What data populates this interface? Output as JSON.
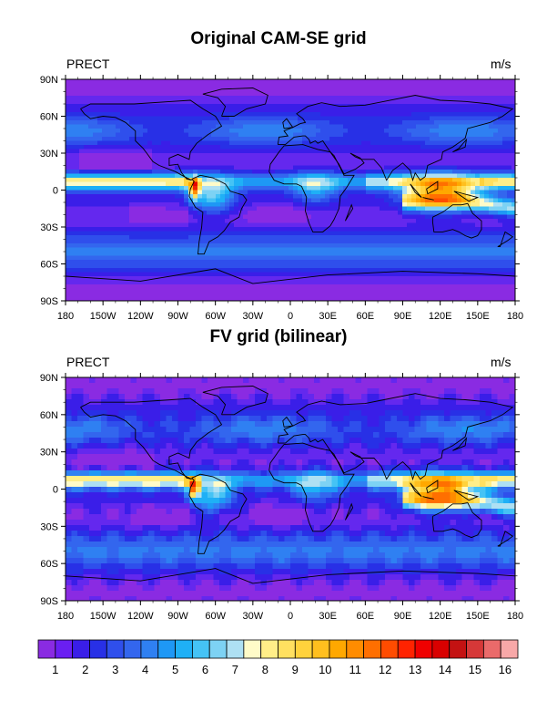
{
  "chart_data": [
    {
      "type": "heatmap",
      "title": "Original CAM-SE grid",
      "variable_label": "PRECT",
      "units_label": "m/s",
      "x_tick_labels": [
        "180",
        "150W",
        "120W",
        "90W",
        "60W",
        "30W",
        "0",
        "30E",
        "60E",
        "90E",
        "120E",
        "150E",
        "180"
      ],
      "y_tick_labels": [
        "90N",
        "60N",
        "30N",
        "0",
        "30S",
        "60S",
        "90S"
      ],
      "xlim": [
        -180,
        180
      ],
      "ylim": [
        -90,
        90
      ],
      "grid": "native spectral-element"
    },
    {
      "type": "heatmap",
      "title": "FV grid (bilinear)",
      "variable_label": "PRECT",
      "units_label": "m/s",
      "x_tick_labels": [
        "180",
        "150W",
        "120W",
        "90W",
        "60W",
        "30W",
        "0",
        "30E",
        "60E",
        "90E",
        "120E",
        "150E",
        "180"
      ],
      "y_tick_labels": [
        "90N",
        "60N",
        "30N",
        "0",
        "30S",
        "60S",
        "90S"
      ],
      "xlim": [
        -180,
        180
      ],
      "ylim": [
        -90,
        90
      ],
      "grid": "finite-volume (bilinear)"
    }
  ],
  "colorbar": {
    "labels": [
      "1",
      "2",
      "3",
      "4",
      "5",
      "6",
      "7",
      "8",
      "9",
      "10",
      "11",
      "12",
      "13",
      "14",
      "15",
      "16"
    ],
    "colors": [
      "#8a2be2",
      "#6a1ff2",
      "#3a1ee8",
      "#2830e6",
      "#2f4fec",
      "#3366ee",
      "#2f80f2",
      "#1e98f5",
      "#1fb0f6",
      "#45c3f5",
      "#7dd2f4",
      "#aee0f3",
      "#fffbc8",
      "#ffee88",
      "#ffe060",
      "#ffd23c",
      "#ffbf1e",
      "#ffa800",
      "#ff8c00",
      "#ff6f00",
      "#ff4c00",
      "#ff2300",
      "#f00000",
      "#d90000",
      "#c41212",
      "#d63838",
      "#ea6a6a",
      "#f8a8a8"
    ]
  }
}
